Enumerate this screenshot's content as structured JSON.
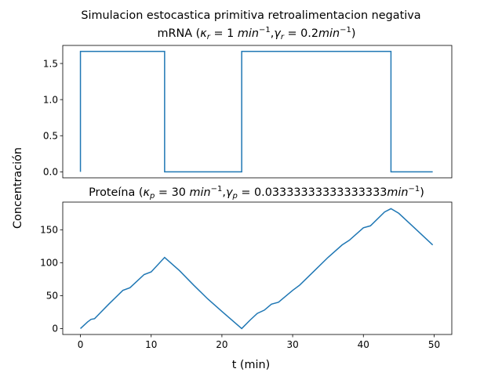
{
  "figure": {
    "suptitle": "Simulacion estocastica primitiva retroalimentacion negativa",
    "ylabel": "Concentración",
    "xlabel": "t (min)",
    "line_color": "#1f77b4"
  },
  "chart_data": [
    {
      "type": "line",
      "title": "mRNA (κ_r = 1 min⁻¹, γ_r = 0.2min⁻¹)",
      "title_parts": {
        "prefix": "mRNA (",
        "k": "κ",
        "k_sub": "r",
        "k_val": " = 1 ",
        "k_unit": "min",
        "k_exp": "−1",
        "sep": ",",
        "g": "γ",
        "g_sub": "r",
        "g_val": " = 0.2",
        "g_unit": "min",
        "g_exp": "−1",
        "suffix": ")"
      },
      "xlim": [
        -2.5,
        52.5
      ],
      "ylim": [
        -0.083,
        1.75
      ],
      "x_ticks": [],
      "y_ticks": [
        0.0,
        0.5,
        1.0,
        1.5
      ],
      "y_tick_labels": [
        "0.0",
        "0.5",
        "1.0",
        "1.5"
      ],
      "series": [
        {
          "step": true,
          "points": [
            [
              0,
              0
            ],
            [
              0,
              1.667
            ],
            [
              11.9,
              1.667
            ],
            [
              11.9,
              0
            ],
            [
              22.8,
              0
            ],
            [
              22.8,
              1.667
            ],
            [
              43.9,
              1.667
            ],
            [
              43.9,
              0
            ],
            [
              49.8,
              0
            ]
          ]
        }
      ]
    },
    {
      "type": "line",
      "title": "Proteína (κ_p = 30 min⁻¹, γ_p = 0.03333333333333333min⁻¹)",
      "title_parts": {
        "prefix": "Proteína (",
        "k": "κ",
        "k_sub": "p",
        "k_val": " = 30 ",
        "k_unit": "min",
        "k_exp": "−1",
        "sep": ",",
        "g": "γ",
        "g_sub": "p",
        "g_val": " = 0.03333333333333333",
        "g_unit": "min",
        "g_exp": "−1",
        "suffix": ")"
      },
      "xlim": [
        -2.5,
        52.5
      ],
      "ylim": [
        -9,
        192
      ],
      "x_ticks": [
        0,
        10,
        20,
        30,
        40,
        50
      ],
      "x_tick_labels": [
        "0",
        "10",
        "20",
        "30",
        "40",
        "50"
      ],
      "y_ticks": [
        0,
        50,
        100,
        150
      ],
      "y_tick_labels": [
        "0",
        "50",
        "100",
        "150"
      ],
      "series": [
        {
          "step": false,
          "points": [
            [
              0,
              0
            ],
            [
              1,
              10
            ],
            [
              1.5,
              14
            ],
            [
              2,
              15
            ],
            [
              4,
              37
            ],
            [
              6,
              58
            ],
            [
              7,
              62
            ],
            [
              8,
              72
            ],
            [
              9,
              82
            ],
            [
              10,
              86
            ],
            [
              11.9,
              108
            ],
            [
              14,
              88
            ],
            [
              16,
              66
            ],
            [
              18,
              45
            ],
            [
              20,
              26
            ],
            [
              22.8,
              0
            ],
            [
              24,
              13
            ],
            [
              25,
              23
            ],
            [
              26,
              28
            ],
            [
              27,
              37
            ],
            [
              28,
              40
            ],
            [
              30,
              58
            ],
            [
              31,
              66
            ],
            [
              33,
              87
            ],
            [
              35,
              108
            ],
            [
              37,
              127
            ],
            [
              38,
              134
            ],
            [
              40,
              153
            ],
            [
              41,
              156
            ],
            [
              43,
              177
            ],
            [
              43.9,
              182
            ],
            [
              45,
              175
            ],
            [
              47,
              155
            ],
            [
              49.8,
              127
            ]
          ]
        }
      ]
    }
  ]
}
